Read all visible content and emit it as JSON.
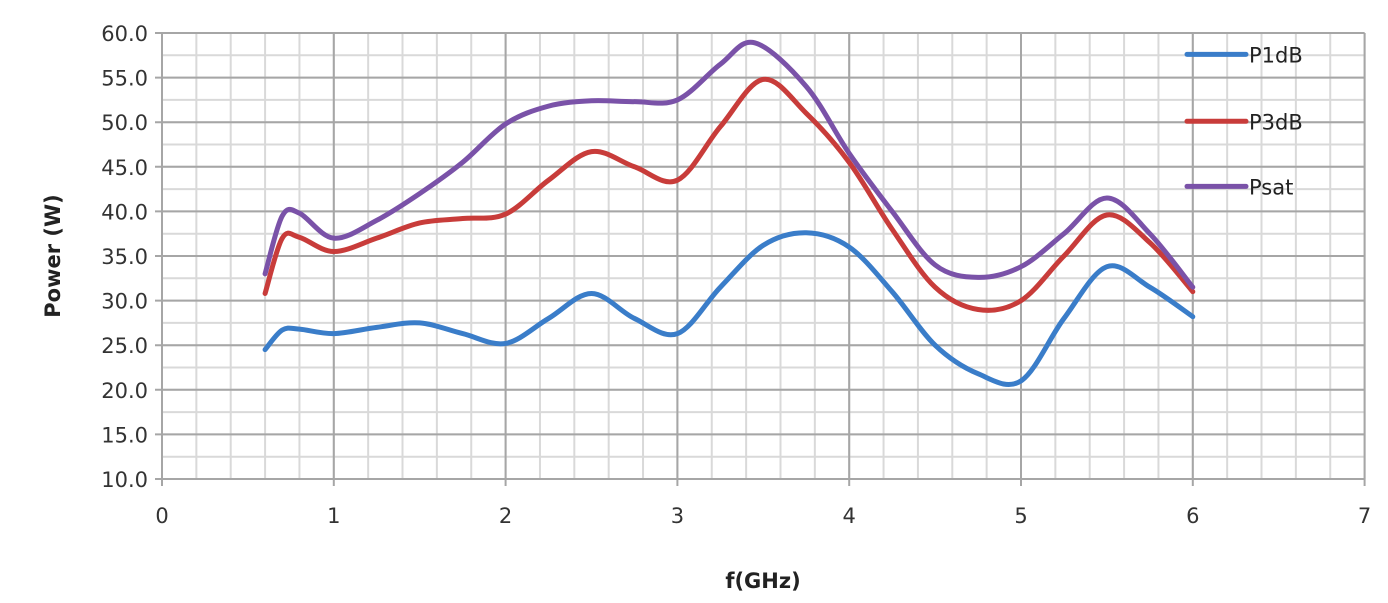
{
  "chart_data": {
    "type": "line",
    "title": "",
    "xlabel": "f(GHz)",
    "ylabel": "Power (W)",
    "xlim": [
      0,
      7
    ],
    "ylim": [
      10,
      60
    ],
    "x_ticks": [
      "0",
      "1",
      "2",
      "3",
      "4",
      "5",
      "6",
      "7"
    ],
    "y_ticks": [
      "10.0",
      "15.0",
      "20.0",
      "25.0",
      "30.0",
      "35.0",
      "40.0",
      "45.0",
      "50.0",
      "55.0",
      "60.0"
    ],
    "grid": {
      "major": true,
      "minor": true,
      "x_minor_step": 0.2,
      "y_minor_step": 2.5
    },
    "legend_position": "top-right",
    "series": [
      {
        "name": "P1dB",
        "color": "#3a7dc9",
        "x": [
          0.6,
          0.7,
          0.8,
          1.0,
          1.25,
          1.5,
          1.75,
          2.0,
          2.25,
          2.5,
          2.75,
          3.0,
          3.25,
          3.5,
          3.75,
          4.0,
          4.25,
          4.5,
          4.75,
          5.0,
          5.25,
          5.5,
          5.75,
          6.0
        ],
        "values": [
          24.5,
          26.7,
          26.8,
          26.3,
          27.0,
          27.5,
          26.3,
          25.2,
          28.0,
          30.8,
          28.0,
          26.3,
          31.5,
          36.2,
          37.6,
          36.0,
          31.0,
          25.0,
          21.8,
          21.0,
          28.0,
          33.8,
          31.5,
          28.2
        ]
      },
      {
        "name": "P3dB",
        "color": "#c83c3a",
        "x": [
          0.6,
          0.7,
          0.8,
          1.0,
          1.25,
          1.5,
          1.75,
          2.0,
          2.25,
          2.5,
          2.75,
          3.0,
          3.25,
          3.5,
          3.75,
          4.0,
          4.25,
          4.5,
          4.75,
          5.0,
          5.25,
          5.5,
          5.75,
          6.0
        ],
        "values": [
          30.8,
          37.0,
          37.1,
          35.5,
          37.0,
          38.7,
          39.2,
          39.7,
          43.5,
          46.7,
          45.0,
          43.5,
          49.5,
          54.8,
          51.0,
          45.5,
          38.0,
          31.5,
          29.0,
          30.0,
          35.0,
          39.6,
          36.5,
          31.0
        ]
      },
      {
        "name": "Psat",
        "color": "#7a52a8",
        "x": [
          0.6,
          0.7,
          0.8,
          1.0,
          1.25,
          1.5,
          1.75,
          2.0,
          2.25,
          2.5,
          2.75,
          3.0,
          3.25,
          3.45,
          3.75,
          4.0,
          4.25,
          4.5,
          4.75,
          5.0,
          5.25,
          5.5,
          5.75,
          6.0
        ],
        "values": [
          33.0,
          39.5,
          39.8,
          37.0,
          39.0,
          42.0,
          45.5,
          49.8,
          51.8,
          52.4,
          52.3,
          52.5,
          56.5,
          58.9,
          54.0,
          46.5,
          40.0,
          34.0,
          32.6,
          33.8,
          37.5,
          41.5,
          37.5,
          31.5
        ]
      }
    ]
  }
}
